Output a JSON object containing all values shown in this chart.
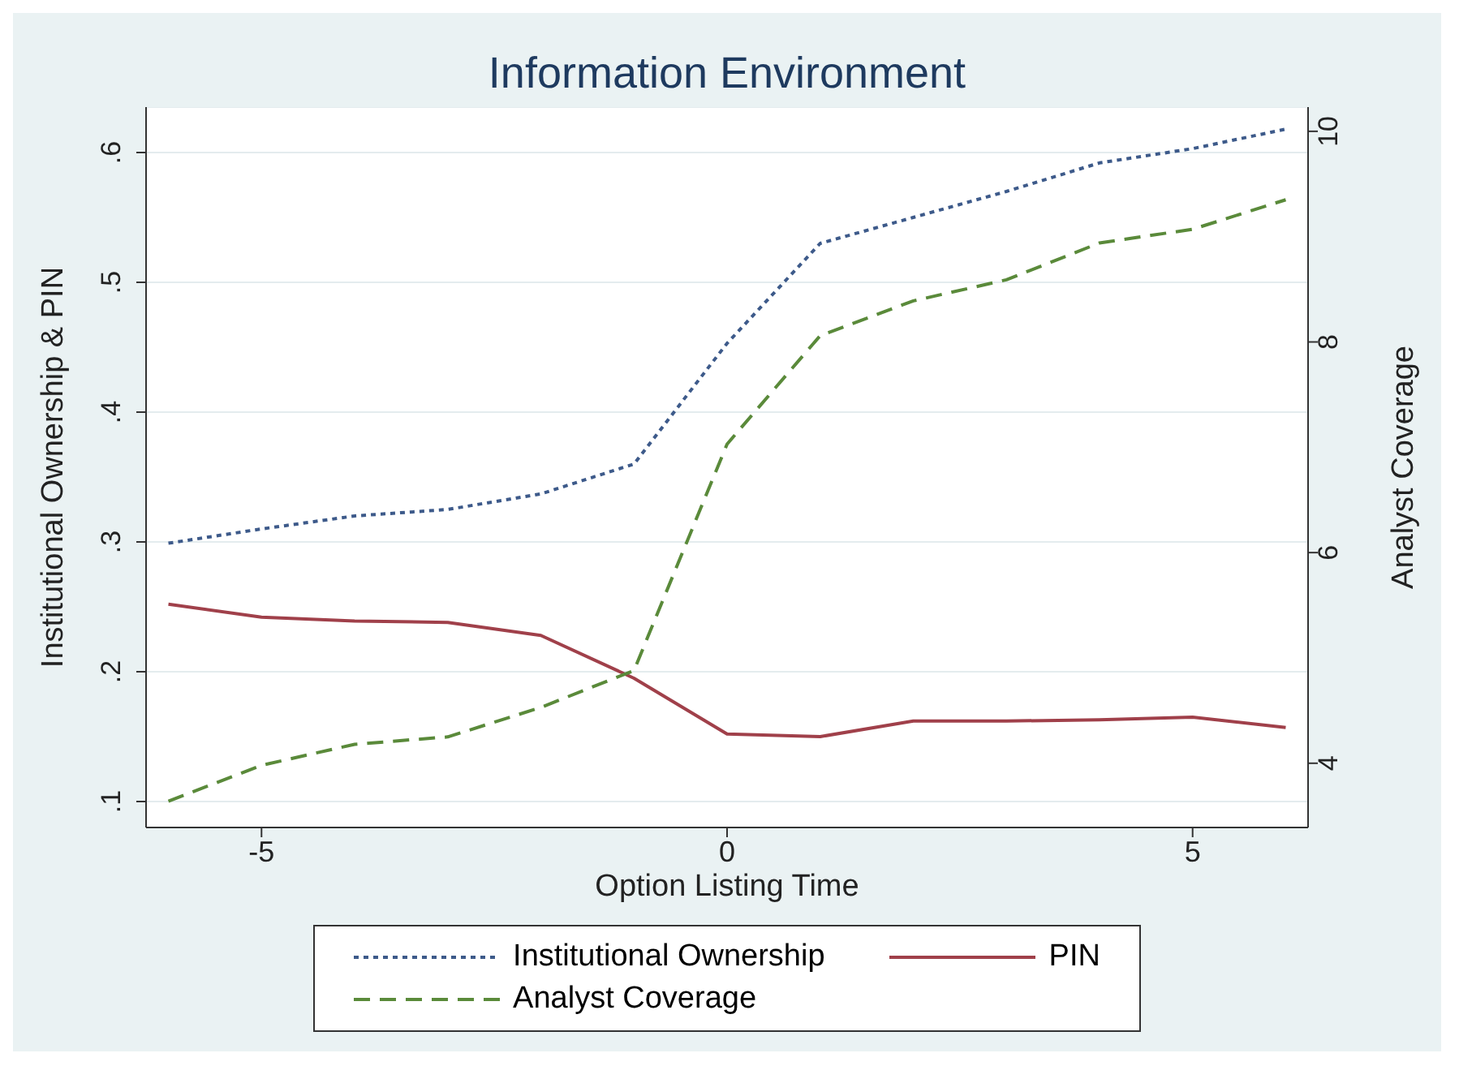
{
  "chart_data": {
    "type": "line",
    "title": "Information Environment",
    "xlabel": "Option Listing Time",
    "ylabel": "Institutional Ownership & PIN",
    "y2label": "Analyst Coverage",
    "x": [
      -6,
      -5,
      -4,
      -3,
      -2,
      -1,
      0,
      1,
      2,
      3,
      4,
      5,
      6
    ],
    "series": [
      {
        "name": "Institutional Ownership",
        "color": "#3d5a8a",
        "line_style": "dotted",
        "values": [
          0.299,
          0.31,
          0.32,
          0.325,
          0.337,
          0.36,
          0.453,
          0.53,
          0.55,
          0.57,
          0.592,
          0.603,
          0.618
        ]
      },
      {
        "name": "PIN",
        "color": "#a0404a",
        "line_style": "solid",
        "values": [
          0.252,
          0.242,
          0.239,
          0.238,
          0.228,
          0.195,
          0.152,
          0.15,
          0.162,
          0.162,
          0.163,
          0.165,
          0.157
        ]
      },
      {
        "name": "Analyst Coverage",
        "color": "#5a8a3a",
        "line_style": "dashed",
        "axis": "y2",
        "values": [
          3.64,
          3.98,
          4.18,
          4.25,
          4.53,
          4.88,
          7.03,
          8.06,
          8.39,
          8.59,
          8.94,
          9.07,
          9.35
        ]
      }
    ],
    "xlim": [
      -6.24,
      6.24
    ],
    "xticks": [
      -5,
      0,
      5
    ],
    "ylim": [
      0.08,
      0.635
    ],
    "yticks": [
      {
        "value": 0.1,
        "label": ".1"
      },
      {
        "value": 0.2,
        "label": ".2"
      },
      {
        "value": 0.3,
        "label": ".3"
      },
      {
        "value": 0.4,
        "label": ".4"
      },
      {
        "value": 0.5,
        "label": ".5"
      },
      {
        "value": 0.6,
        "label": ".6"
      }
    ],
    "y2lim": [
      3.39,
      10.23
    ],
    "y2ticks": [
      4,
      6,
      8,
      10
    ],
    "grid": "y",
    "legend": "bottom",
    "marker": "none"
  }
}
